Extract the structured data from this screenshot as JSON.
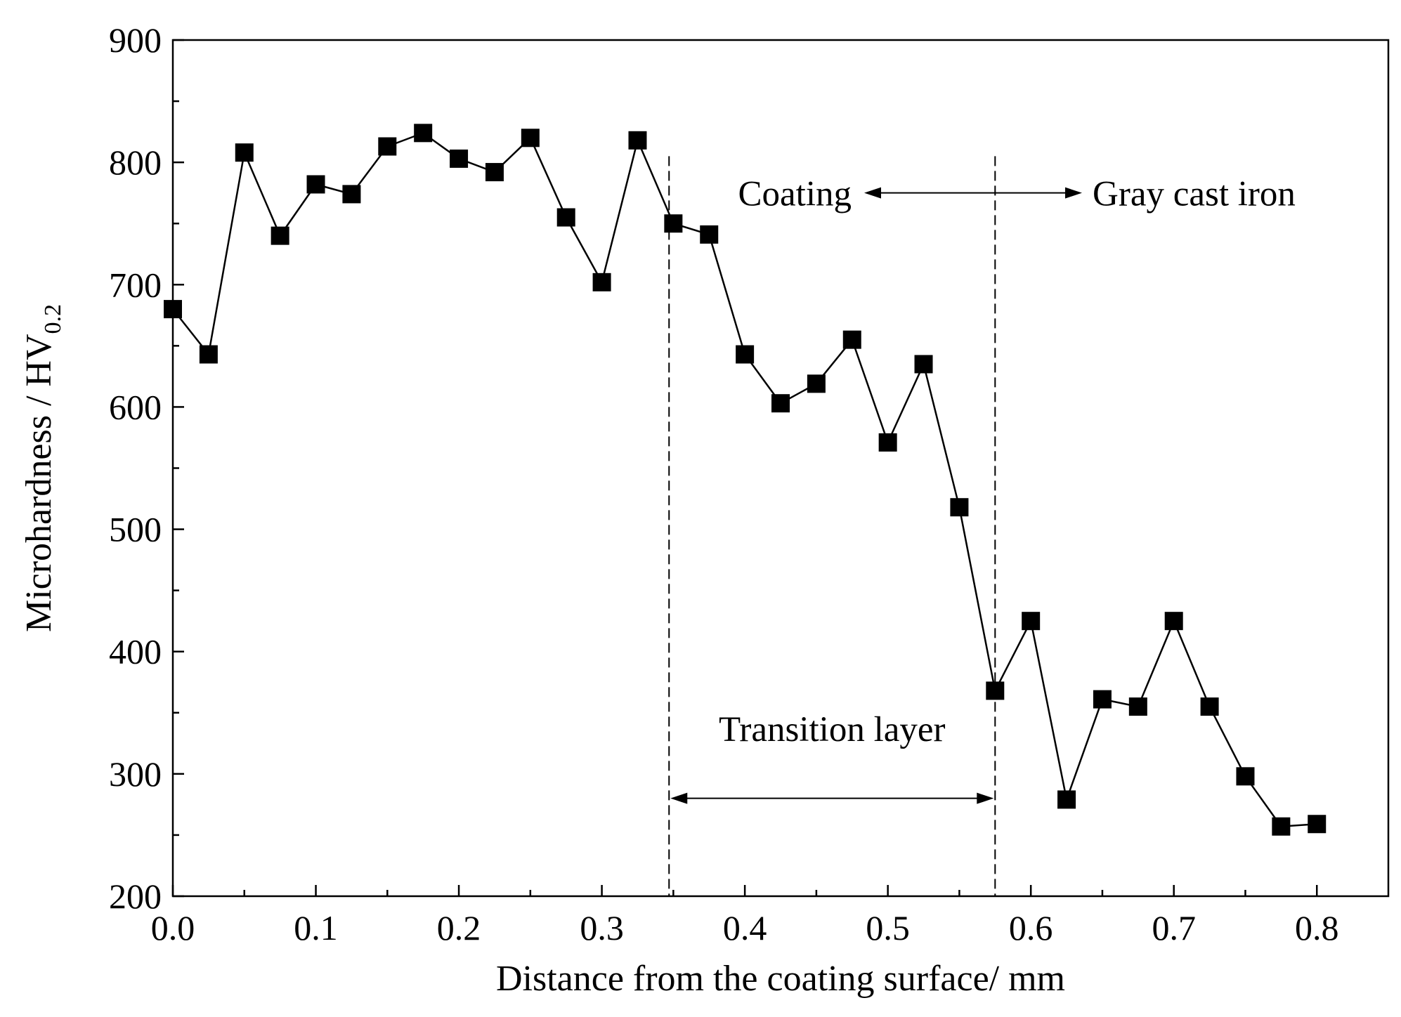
{
  "chart_data": {
    "type": "line",
    "xlabel": "Distance from the coating surface/ mm",
    "ylabel": {
      "main": "Microhardness / HV",
      "subscript": "0.2"
    },
    "xlim": [
      0.0,
      0.85
    ],
    "ylim": [
      200,
      900
    ],
    "x_ticks": [
      "0.0",
      "0.1",
      "0.2",
      "0.3",
      "0.4",
      "0.5",
      "0.6",
      "0.7",
      "0.8"
    ],
    "y_ticks": [
      "200",
      "300",
      "400",
      "500",
      "600",
      "700",
      "800",
      "900"
    ],
    "grid": false,
    "series": [
      {
        "name": "Microhardness",
        "marker": "square",
        "x": [
          0.0,
          0.025,
          0.05,
          0.075,
          0.1,
          0.125,
          0.15,
          0.175,
          0.2,
          0.225,
          0.25,
          0.275,
          0.3,
          0.325,
          0.35,
          0.375,
          0.4,
          0.425,
          0.45,
          0.475,
          0.5,
          0.525,
          0.55,
          0.575,
          0.6,
          0.625,
          0.65,
          0.675,
          0.7,
          0.725,
          0.75,
          0.775,
          0.8
        ],
        "y": [
          680,
          643,
          808,
          740,
          782,
          774,
          813,
          824,
          803,
          792,
          820,
          755,
          702,
          818,
          750,
          741,
          643,
          603,
          619,
          655,
          571,
          635,
          518,
          368,
          425,
          279,
          361,
          355,
          425,
          355,
          298,
          257,
          259
        ]
      }
    ],
    "boundaries_x": [
      0.347,
      0.575
    ],
    "annotations": {
      "coating": "Coating",
      "gray_cast_iron": "Gray cast iron",
      "transition_layer": "Transition layer"
    }
  }
}
